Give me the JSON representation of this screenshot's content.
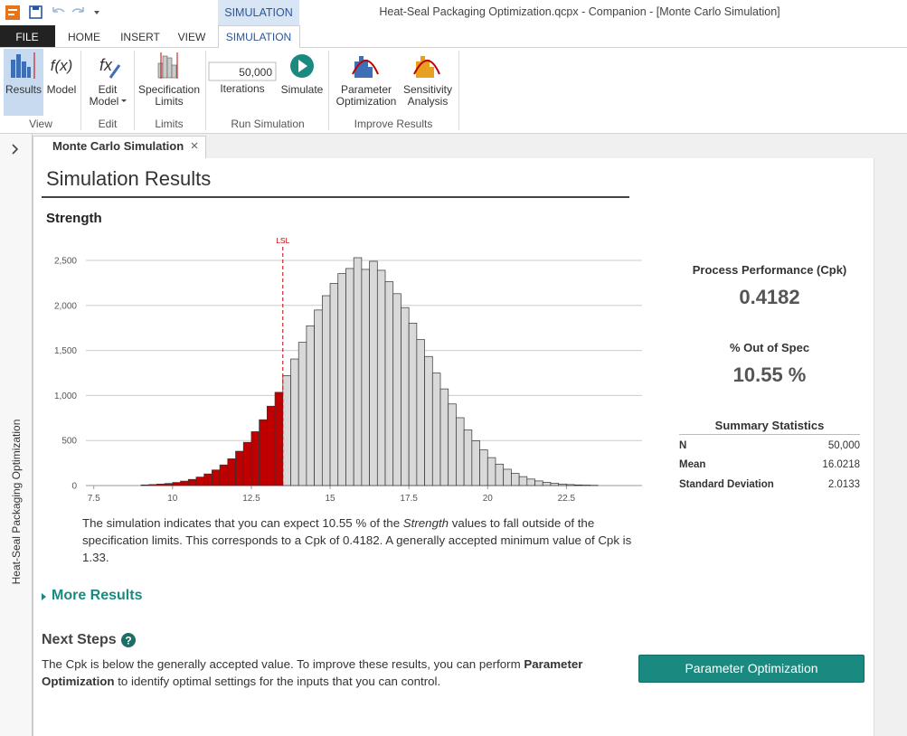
{
  "title_bar": {
    "title": "Heat-Seal Packaging Optimization.qcpx - Companion - [Monte Carlo Simulation]",
    "context_tab": "SIMULATION"
  },
  "ribbon": {
    "tabs": [
      "FILE",
      "HOME",
      "INSERT",
      "VIEW",
      "SIMULATION"
    ],
    "groups": [
      {
        "label": "View",
        "buttons": [
          [
            "Results"
          ],
          [
            "Model"
          ]
        ]
      },
      {
        "label": "Edit",
        "buttons": [
          [
            "Edit",
            "Model"
          ]
        ]
      },
      {
        "label": "Limits",
        "buttons": [
          [
            "Specification",
            "Limits"
          ]
        ]
      },
      {
        "label": "Run Simulation",
        "iterations": "50,000",
        "buttons": [
          [
            "Iterations"
          ],
          [
            "Simulate"
          ]
        ]
      },
      {
        "label": "Improve Results",
        "buttons": [
          [
            "Parameter",
            "Optimization"
          ],
          [
            "Sensitivity",
            "Analysis"
          ]
        ]
      }
    ]
  },
  "side_panel": {
    "label": "Heat-Seal Packaging Optimization"
  },
  "document_tab": {
    "label": "Monte Carlo Simulation"
  },
  "report": {
    "title": "Simulation Results",
    "variable": "Strength",
    "description": [
      "The simulation indicates that you can expect 10.55 % of the ",
      "Strength",
      " values to fall outside of the specification limits. This corresponds to a Cpk of 0.4182. A generally accepted minimum value of Cpk is 1.33."
    ],
    "more_results": "More Results",
    "next_steps": {
      "heading": "Next Steps",
      "text": [
        "The Cpk is below the generally accepted value. To improve these results, you can perform ",
        "Parameter Optimization",
        " to identify optimal settings for the inputs that you can control."
      ],
      "button": "Parameter Optimization"
    }
  },
  "summary": {
    "cpk_label": "Process Performance (Cpk)",
    "cpk": "0.4182",
    "out_of_spec_label": "% Out of Spec",
    "out_of_spec": "10.55 %",
    "stats_title": "Summary Statistics",
    "rows": [
      [
        "N",
        "50,000"
      ],
      [
        "Mean",
        "16.0218"
      ],
      [
        "Standard Deviation",
        "2.0133"
      ]
    ]
  },
  "chart_data": {
    "type": "histogram",
    "bins": [
      9,
      9.25,
      9.5,
      9.75,
      10,
      10.25,
      10.5,
      10.75,
      11,
      11.25,
      11.5,
      11.75,
      12,
      12.25,
      12.5,
      12.75,
      13,
      13.25,
      13.5,
      13.75,
      14,
      14.25,
      14.5,
      14.75,
      15,
      15.25,
      15.5,
      15.75,
      16,
      16.25,
      16.5,
      16.75,
      17,
      17.25,
      17.5,
      17.75,
      18,
      18.25,
      18.5,
      18.75,
      19,
      19.25,
      19.5,
      19.75,
      20,
      20.25,
      20.5,
      20.75,
      21,
      21.25,
      21.5,
      21.75,
      22,
      22.25,
      22.5,
      22.75,
      23,
      23.25,
      23.5
    ],
    "counts": [
      7,
      11,
      16,
      23,
      34,
      49,
      68,
      94,
      129,
      173,
      229,
      297,
      381,
      480,
      598,
      731,
      881,
      1035,
      1221,
      1405,
      1590,
      1774,
      1949,
      2108,
      2244,
      2353,
      2410,
      2530,
      2400,
      2490,
      2390,
      2263,
      2130,
      1976,
      1803,
      1620,
      1433,
      1249,
      1073,
      906,
      753,
      617,
      498,
      396,
      310,
      238,
      181,
      135,
      99,
      72,
      51,
      36,
      25,
      17,
      11,
      7,
      5,
      3
    ],
    "color": "#d9d9d9",
    "out_of_spec_color": "#c00000",
    "lsl": {
      "value": 13.5,
      "label": "LSL"
    },
    "xlim": [
      7.25,
      24.9
    ],
    "xticks": [
      7.5,
      10,
      12.5,
      15,
      17.5,
      20,
      22.5
    ],
    "ylim": [
      0,
      2580
    ],
    "yticks": [
      0,
      500,
      {
        "value": 1000,
        "label": "1,000"
      },
      {
        "value": 1500,
        "label": "1,500"
      },
      {
        "value": 2000,
        "label": "2,000"
      },
      {
        "value": 2500,
        "label": "2,500"
      }
    ],
    "grid": true
  }
}
